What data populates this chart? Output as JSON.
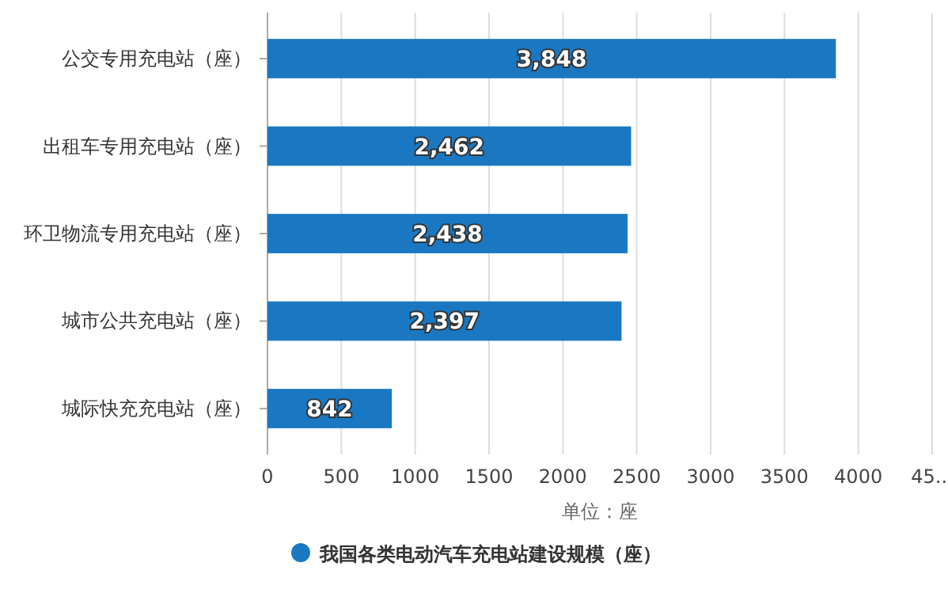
{
  "chart_data": {
    "type": "bar",
    "orientation": "horizontal",
    "xlabel": "单位：座",
    "categories": [
      "公交专用充电站（座）",
      "出租车专用充电站（座）",
      "环卫物流专用充电站（座）",
      "城市公共充电站（座）",
      "城际快充充电站（座）"
    ],
    "series": [
      {
        "name": "我国各类电动汽车充电站建设规模（座）",
        "color": "#1a78c2",
        "values": [
          3848,
          2462,
          2438,
          2397,
          842
        ],
        "value_labels": [
          "3,848",
          "2,462",
          "2,438",
          "2,397",
          "842"
        ]
      }
    ],
    "xlim": [
      0,
      4500
    ],
    "xticks": [
      0,
      500,
      1000,
      1500,
      2000,
      2500,
      3000,
      3500,
      4000,
      {
        "value": 4500,
        "label": "45..."
      }
    ],
    "grid": "x",
    "legend": "bottom"
  }
}
